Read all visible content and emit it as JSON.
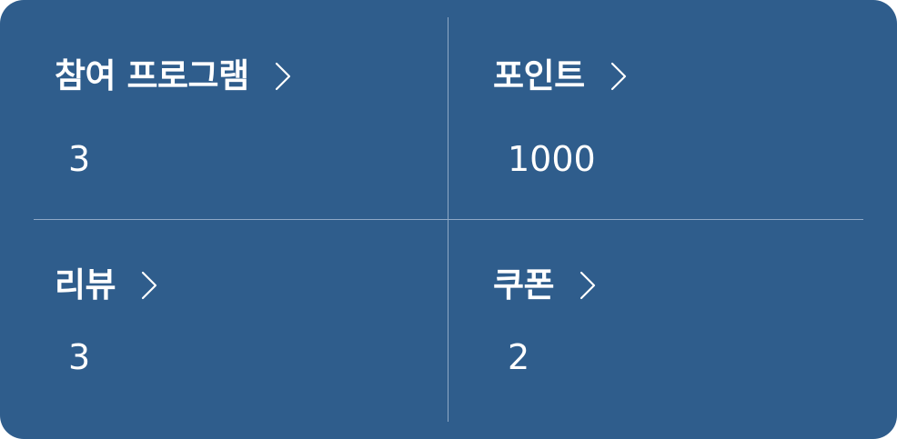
{
  "summary": {
    "programs": {
      "label": "참여 프로그램",
      "value": "3"
    },
    "points": {
      "label": "포인트",
      "value": "1000"
    },
    "reviews": {
      "label": "리뷰",
      "value": "3"
    },
    "coupons": {
      "label": "쿠폰",
      "value": "2"
    }
  },
  "colors": {
    "card_background": "#2f5d8c",
    "divider": "#8fa9c6",
    "text": "#ffffff"
  },
  "icons": {
    "chevron": "chevron-right-icon"
  }
}
